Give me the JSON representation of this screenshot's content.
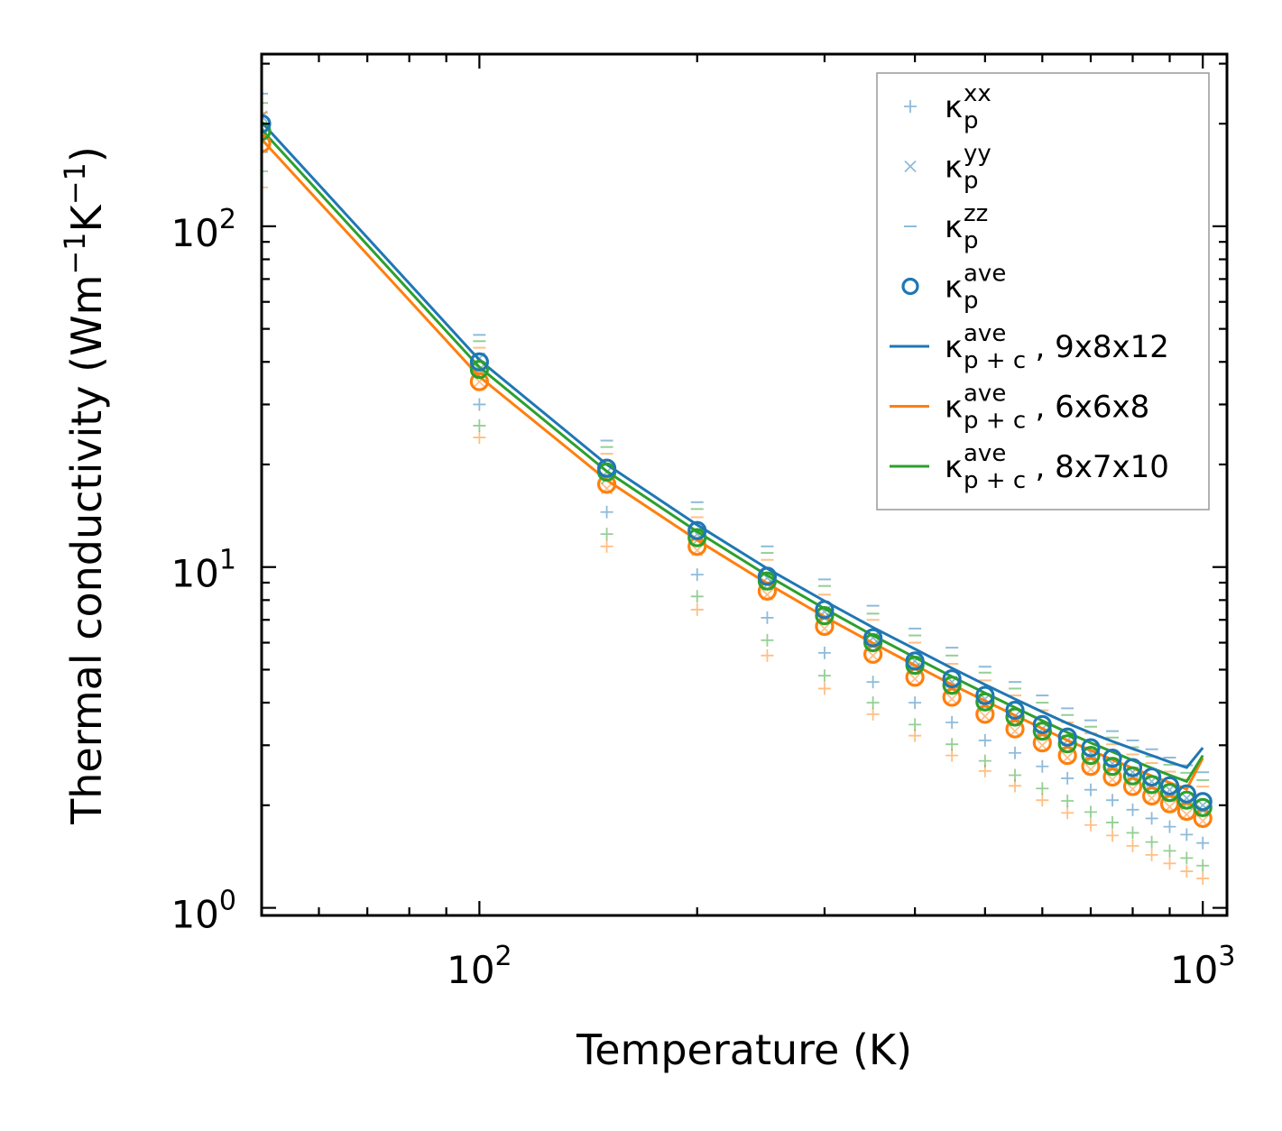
{
  "chart_data": {
    "type": "scatter",
    "title": "",
    "xlabel": "Temperature (K)",
    "ylabel": {
      "pre": "Thermal conductivity (Wm",
      "exp1": "−1",
      "mid": "K",
      "exp2": "−1",
      "post": ")"
    },
    "xscale": "log",
    "yscale": "log",
    "xlim": [
      50,
      1080
    ],
    "ylim": [
      0.95,
      320
    ],
    "xticks": [
      {
        "value": 100,
        "base": "10",
        "exp": "2"
      },
      {
        "value": 1000,
        "base": "10",
        "exp": "3"
      }
    ],
    "yticks": [
      {
        "value": 1,
        "base": "10",
        "exp": "0"
      },
      {
        "value": 10,
        "base": "10",
        "exp": "1"
      },
      {
        "value": 100,
        "base": "10",
        "exp": "2"
      }
    ],
    "legend_position": "top-right",
    "legend": [
      {
        "id": "kxx",
        "marker": "+",
        "color": "#1f77b4",
        "alpha": 0.5,
        "sup": "xx",
        "sub": "p",
        "suffix": ""
      },
      {
        "id": "kyy",
        "marker": "x",
        "color": "#1f77b4",
        "alpha": 0.5,
        "sup": "yy",
        "sub": "p",
        "suffix": ""
      },
      {
        "id": "kzz",
        "marker": "_",
        "color": "#1f77b4",
        "alpha": 0.5,
        "sup": "zz",
        "sub": "p",
        "suffix": ""
      },
      {
        "id": "kave",
        "marker": "o",
        "color": "#1f77b4",
        "alpha": 1,
        "sup": "ave",
        "sub": "p",
        "suffix": ""
      },
      {
        "id": "line-9x8x12",
        "marker": "line",
        "color": "#1f77b4",
        "alpha": 1,
        "sup": "ave",
        "sub": "p + c",
        "suffix": ", 9x8x12"
      },
      {
        "id": "line-6x6x8",
        "marker": "line",
        "color": "#ff7f0e",
        "alpha": 1,
        "sup": "ave",
        "sub": "p + c",
        "suffix": ", 6x6x8"
      },
      {
        "id": "line-8x7x10",
        "marker": "line",
        "color": "#2ca02c",
        "alpha": 1,
        "sup": "ave",
        "sub": "p + c",
        "suffix": ", 8x7x10"
      }
    ],
    "x": [
      50,
      100,
      150,
      200,
      250,
      300,
      350,
      400,
      450,
      500,
      550,
      600,
      650,
      700,
      750,
      800,
      850,
      900,
      950,
      1000
    ],
    "series": [
      {
        "name": "9x8x12",
        "color": "#1f77b4",
        "kxx": [
          165,
          30,
          14.5,
          9.5,
          7.1,
          5.6,
          4.6,
          4.0,
          3.5,
          3.1,
          2.85,
          2.6,
          2.4,
          2.22,
          2.07,
          1.94,
          1.83,
          1.73,
          1.64,
          1.55
        ],
        "kyy": [
          210,
          41,
          19,
          12.5,
          9.3,
          7.4,
          6.2,
          5.3,
          4.6,
          4.1,
          3.65,
          3.35,
          3.1,
          2.85,
          2.65,
          2.5,
          2.35,
          2.22,
          2.1,
          2.0
        ],
        "kzz": [
          245,
          48,
          23.5,
          15.5,
          11.5,
          9.2,
          7.7,
          6.6,
          5.8,
          5.1,
          4.6,
          4.2,
          3.85,
          3.55,
          3.3,
          3.1,
          2.92,
          2.76,
          2.62,
          2.5
        ],
        "kave": [
          200,
          40,
          19.5,
          12.8,
          9.4,
          7.5,
          6.2,
          5.3,
          4.7,
          4.2,
          3.8,
          3.45,
          3.17,
          2.95,
          2.75,
          2.58,
          2.42,
          2.28,
          2.16,
          2.05
        ],
        "line": [
          202,
          40.5,
          20.0,
          13.3,
          9.9,
          7.95,
          6.65,
          5.75,
          5.05,
          4.52,
          4.1,
          3.76,
          3.48,
          3.26,
          3.08,
          2.93,
          2.8,
          2.68,
          2.58,
          2.95
        ]
      },
      {
        "name": "6x6x8",
        "color": "#ff7f0e",
        "kxx": [
          130,
          24,
          11.5,
          7.5,
          5.5,
          4.4,
          3.7,
          3.2,
          2.8,
          2.52,
          2.28,
          2.07,
          1.9,
          1.75,
          1.63,
          1.52,
          1.43,
          1.35,
          1.28,
          1.22
        ],
        "kyy": [
          180,
          35,
          17,
          11.2,
          8.3,
          6.6,
          5.5,
          4.7,
          4.1,
          3.65,
          3.3,
          3.0,
          2.76,
          2.55,
          2.38,
          2.23,
          2.1,
          1.98,
          1.88,
          1.8
        ],
        "kzz": [
          215,
          44,
          21.5,
          14,
          10.5,
          8.3,
          7.0,
          6.0,
          5.2,
          4.65,
          4.2,
          3.8,
          3.5,
          3.25,
          3.02,
          2.82,
          2.66,
          2.51,
          2.38,
          2.27
        ],
        "kave": [
          175,
          35,
          17.5,
          11.5,
          8.5,
          6.7,
          5.55,
          4.75,
          4.15,
          3.7,
          3.35,
          3.05,
          2.8,
          2.6,
          2.42,
          2.27,
          2.13,
          2.02,
          1.92,
          1.83
        ],
        "line": [
          180,
          36.2,
          18.0,
          12.0,
          8.95,
          7.15,
          5.98,
          5.15,
          4.52,
          4.05,
          3.67,
          3.36,
          3.1,
          2.9,
          2.72,
          2.57,
          2.44,
          2.33,
          2.23,
          2.75
        ]
      },
      {
        "name": "8x7x10",
        "color": "#2ca02c",
        "kxx": [
          145,
          26,
          12.5,
          8.2,
          6.1,
          4.8,
          4.0,
          3.45,
          3.02,
          2.7,
          2.45,
          2.24,
          2.06,
          1.91,
          1.78,
          1.66,
          1.56,
          1.47,
          1.4,
          1.33
        ],
        "kyy": [
          195,
          38,
          18.2,
          12,
          8.9,
          7.1,
          5.9,
          5.05,
          4.4,
          3.92,
          3.55,
          3.23,
          2.97,
          2.75,
          2.56,
          2.4,
          2.26,
          2.13,
          2.02,
          1.93
        ],
        "kzz": [
          230,
          46,
          22.5,
          14.8,
          11,
          8.8,
          7.3,
          6.3,
          5.5,
          4.9,
          4.4,
          4.0,
          3.68,
          3.4,
          3.16,
          2.96,
          2.78,
          2.63,
          2.49,
          2.37
        ],
        "kave": [
          190,
          38,
          19,
          12.2,
          9.1,
          7.2,
          6.0,
          5.15,
          4.5,
          4.02,
          3.63,
          3.3,
          3.03,
          2.8,
          2.6,
          2.44,
          2.3,
          2.18,
          2.07,
          1.97
        ],
        "line": [
          192,
          38.6,
          19.1,
          12.7,
          9.45,
          7.55,
          6.3,
          5.43,
          4.77,
          4.27,
          3.87,
          3.54,
          3.27,
          3.05,
          2.87,
          2.71,
          2.57,
          2.45,
          2.35,
          2.8
        ]
      }
    ]
  }
}
